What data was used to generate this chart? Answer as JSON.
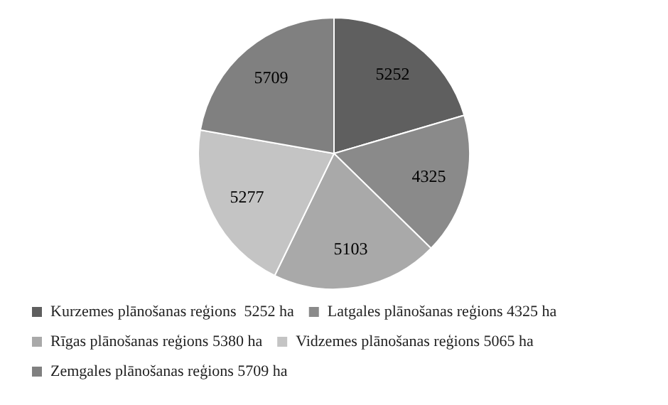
{
  "chart_data": {
    "type": "pie",
    "categories": [
      "Kurzemes plānošanas reģions  5252 ha",
      "Latgales plānošanas reģions 4325 ha",
      "Rīgas plānošanas reģions 5380 ha",
      "Vidzemes plānošanas reģions 5065 ha",
      "Zemgales plānošanas reģions 5709 ha"
    ],
    "values": [
      5252,
      4325,
      5103,
      5277,
      5709
    ],
    "colors": [
      "#5f5f5f",
      "#8a8a8a",
      "#a9a9a9",
      "#c4c4c4",
      "#808080"
    ],
    "data_labels": true,
    "legend": "bottom"
  }
}
